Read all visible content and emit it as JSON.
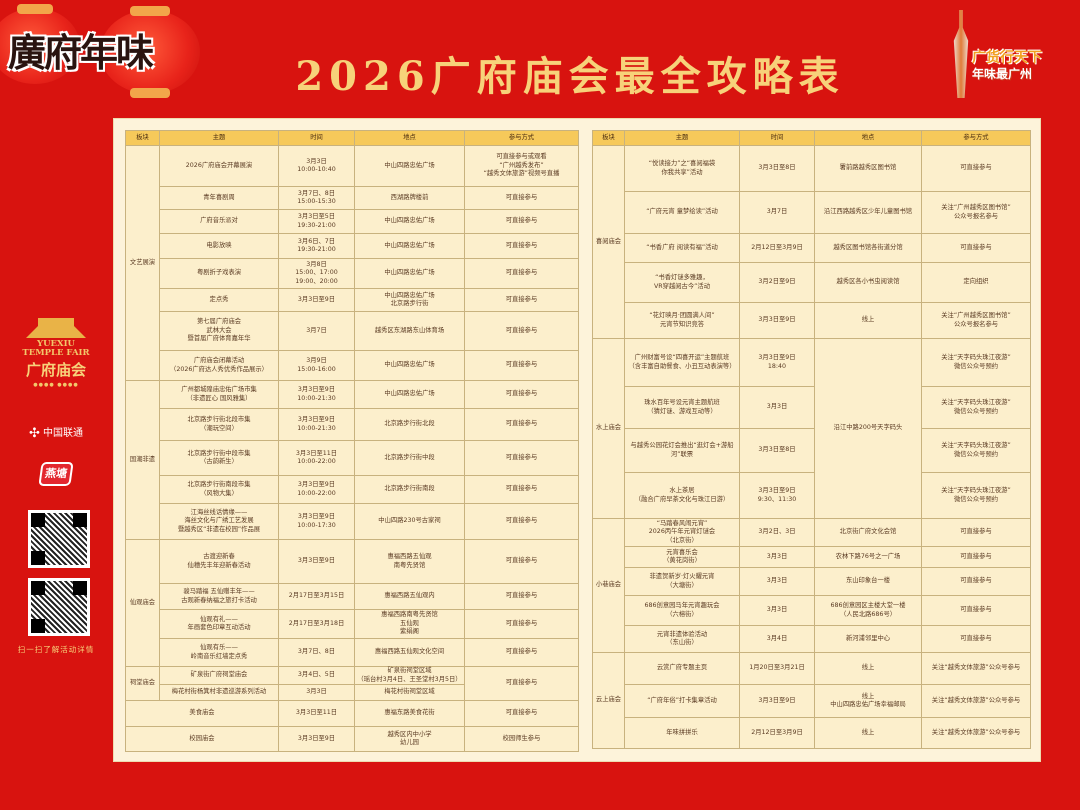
{
  "header": {
    "logo_text": "廣府年味",
    "title": "2026广府庙会最全攻略表",
    "slogan_line1": "广货行天下",
    "slogan_line2": "年味最广州"
  },
  "sidebar": {
    "fair_logo_badge": "越秀",
    "fair_logo_en": "YUEXIU\nTEMPLE FAIR",
    "fair_logo_cn": "广府庙会",
    "sponsor_unicom": "中国联通",
    "sponsor_yantang": "燕塘",
    "scan_text": "扫一扫了解活动详情"
  },
  "colors": {
    "background": "#d8130f",
    "title_gold": "#f7d27a",
    "header_cell": "#f6c95a",
    "body_cell": "#fcefcc"
  },
  "columns": [
    "板块",
    "主题",
    "时间",
    "地点",
    "参与方式"
  ],
  "left_table": [
    {
      "module": "文艺展演",
      "rows": [
        {
          "theme": "2026广府庙会开幕展演",
          "time": "3月3日\n10:00-10:40",
          "place": "中山四路忠佑广场",
          "join": "可直接参与或观看\n“广州越秀发布”\n“越秀文体旅游”视频号直播"
        },
        {
          "theme": "青年喜剧周",
          "time": "3月7日、8日\n15:00-15:30",
          "place": "西湖路牌楼前",
          "join": "可直接参与"
        },
        {
          "theme": "广府音乐派对",
          "time": "3月3日至5日\n19:30-21:00",
          "place": "中山四路忠佑广场",
          "join": "可直接参与"
        },
        {
          "theme": "电影放映",
          "time": "3月6日、7日\n19:30-21:00",
          "place": "中山四路忠佑广场",
          "join": "可直接参与"
        },
        {
          "theme": "粤剧折子戏表演",
          "time": "3月8日\n15:00、17:00\n19:00、20:00",
          "place": "中山四路忠佑广场",
          "join": "可直接参与"
        },
        {
          "theme": "定点秀",
          "time": "3月3日至9日",
          "place": "中山四路忠佑广场\n北京路步行街",
          "join": "可直接参与"
        },
        {
          "theme": "第七届广府庙会\n武林大会\n暨首届广府体育嘉年华",
          "time": "3月7日",
          "place": "越秀区东湖路东山体育场",
          "join": "可直接参与"
        },
        {
          "theme": "广府庙会闭幕活动\n（2026广府达人秀优秀作品展示）",
          "time": "3月9日\n15:00-16:00",
          "place": "中山四路忠佑广场",
          "join": "可直接参与"
        }
      ]
    },
    {
      "module": "国潮非遗",
      "rows": [
        {
          "theme": "广州都城隍庙忠佑广场市集\n（非遗匠心 国风雅集）",
          "time": "3月3日至9日\n10:00-21:30",
          "place": "中山四路忠佑广场",
          "join": "可直接参与"
        },
        {
          "theme": "北京路步行街北段市集\n（潮玩空间）",
          "time": "3月3日至9日\n10:00-21:30",
          "place": "北京路步行街北段",
          "join": "可直接参与"
        },
        {
          "theme": "北京路步行街中段市集\n（古韵新生）",
          "time": "3月3日至11日\n10:00-22:00",
          "place": "北京路步行街中段",
          "join": "可直接参与"
        },
        {
          "theme": "北京路步行街南段市集\n（风物大集）",
          "time": "3月3日至9日\n10:00-22:00",
          "place": "北京路步行街南段",
          "join": "可直接参与"
        },
        {
          "theme": "江海丝线话情缘——\n海丝文化与广绣工艺发展\n暨越秀区“非遗在校园”作品展",
          "time": "3月3日至9日\n10:00-17:30",
          "place": "中山四路230号古家祠",
          "join": "可直接参与"
        }
      ]
    },
    {
      "module": "仙观庙会",
      "rows": [
        {
          "theme": "古渡迎新春\n仙穗先丰年迎新春活动",
          "time": "3月3日至9日",
          "place": "惠福西路五仙观\n南粤先贤馆",
          "join": "可直接参与"
        },
        {
          "theme": "骏马踏福 五仙赠丰年——\n古观新春纳福之旅打卡活动",
          "time": "2月17日至3月15日",
          "place": "惠福西路五仙观内",
          "join": "可直接参与"
        },
        {
          "theme": "仙观有礼——\n年画套色印章互动活动",
          "time": "2月17日至3月18日",
          "place": "惠福西路南粤先贤馆\n五仙观\n紫绢阁",
          "join": "可直接参与"
        },
        {
          "theme": "仙观有乐——\n岭南音乐红墙定点秀",
          "time": "3月7日、8日",
          "place": "惠福西路五仙观文化空间",
          "join": "可直接参与"
        }
      ]
    },
    {
      "module": "祠堂庙会",
      "shared_join": "可直接参与",
      "rows": [
        {
          "theme": "矿泉街广府祠堂庙会",
          "time": "3月4日、5日",
          "place": "矿泉街祠堂区域\n（瑶台村3月4日、王圣堂村3月5日）"
        },
        {
          "theme": "梅花村街杨箕村非遗巡游系列活动",
          "time": "3月3日",
          "place": "梅花村街祠堂区域"
        }
      ]
    },
    {
      "module": "美食庙会",
      "module_spans_theme": true,
      "rows": [
        {
          "time": "3月3日至11日",
          "place": "惠福东路美食花街",
          "join": "可直接参与"
        }
      ]
    },
    {
      "module": "校园庙会",
      "module_spans_theme": true,
      "rows": [
        {
          "time": "3月3日至9日",
          "place": "越秀区内中小学\n幼儿园",
          "join": "校园师生参与"
        }
      ]
    }
  ],
  "right_table": [
    {
      "module": "喜阅庙会",
      "rows": [
        {
          "theme": "“悦读接力”之“喜阅福袋\n你我共享”活动",
          "time": "3月3日至8日",
          "place": "署前路越秀区图书馆",
          "join": "可直接参与"
        },
        {
          "theme": "“广府元宵 童梦绘读”活动",
          "time": "3月7日",
          "place": "沿江西路越秀区少年儿童图书馆",
          "join": "关注“广州越秀区图书馆”\n公众号报名参与"
        },
        {
          "theme": "“书香广府 阅读有福”活动",
          "time": "2月12日至3月9日",
          "place": "越秀区图书馆各街道分馆",
          "join": "可直接参与"
        },
        {
          "theme": "“书香灯谜多雅趣，\nVR穿越阅古今”活动",
          "time": "3月2日至9日",
          "place": "越秀区各小书虫阅读馆",
          "join": "定向组织"
        },
        {
          "theme": "“花灯映月·团圆满人间”\n元宵节知识竞答",
          "time": "3月3日至9日",
          "place": "线上",
          "join": "关注“广州越秀区图书馆”\n公众号报名参与"
        }
      ]
    },
    {
      "module": "水上庙会",
      "shared_place": "沿江中路200号天字码头",
      "rows": [
        {
          "theme": "广州财富号设“四喜开运”主题航班\n（含丰富自助餐食、小丑互动表演等）",
          "time": "3月3日至9日\n18:40",
          "join": "关注“天字码头珠江夜游”\n微信公众号预约"
        },
        {
          "theme": "珠水百年号设元宵主题航班\n（猜灯谜、游戏互动等）",
          "time": "3月3日",
          "join": "关注“天字码头珠江夜游”\n微信公众号预约"
        },
        {
          "theme": "与越秀公园花灯会推出“逛灯会+游船河”联票",
          "time": "3月3日至8日",
          "join": "关注“天字码头珠江夜游”\n微信公众号预约"
        },
        {
          "theme": "水上茶居\n（融合广府早茶文化与珠江日游）",
          "time": "3月3日至9日\n9:30、11:30",
          "join": "关注“天字码头珠江夜游”\n微信公众号预约"
        }
      ]
    },
    {
      "module": "小巷庙会",
      "rows": [
        {
          "theme": "“马踏春风闹元宵”\n2026丙午年元宵灯谜会\n（北京街）",
          "time": "3月2日、3日",
          "place": "北京街广府文化会馆",
          "join": "可直接参与"
        },
        {
          "theme": "元宵喜乐会\n（黄花岗街）",
          "time": "3月3日",
          "place": "农林下路76号之一广场",
          "join": "可直接参与"
        },
        {
          "theme": "非遗贺新岁·灯火耀元宵\n（大塘街）",
          "time": "3月3日",
          "place": "东山印象台一楼",
          "join": "可直接参与"
        },
        {
          "theme": "686创意园马年元宵趣玩会\n（六榕街）",
          "time": "3月3日",
          "place": "686创意园区主楼大堂一楼\n（人民北路686号）",
          "join": "可直接参与"
        },
        {
          "theme": "元宵非遗体验活动\n（东山街）",
          "time": "3月4日",
          "place": "新河浦邻里中心",
          "join": "可直接参与"
        }
      ]
    },
    {
      "module": "云上庙会",
      "rows": [
        {
          "theme": "云赏广府专题主页",
          "time": "1月20日至3月21日",
          "place": "线上",
          "join": "关注“越秀文体旅游”公众号参与"
        },
        {
          "theme": "“广府年俗”打卡集章活动",
          "time": "3月3日至9日",
          "place": "线上\n中山四路忠佑广场幸福邮局",
          "join": "关注“越秀文体旅游”公众号参与"
        },
        {
          "theme": "年味拼拼乐",
          "time": "2月12日至3月9日",
          "place": "线上",
          "join": "关注“越秀文体旅游”公众号参与"
        }
      ]
    }
  ]
}
